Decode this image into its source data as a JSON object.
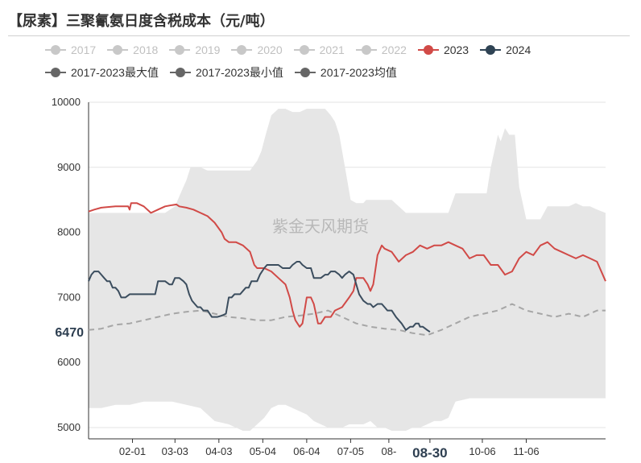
{
  "title": "【尿素】三聚氰氨日度含税成本（元/吨）",
  "watermark": "紫金天风期货",
  "legend": [
    {
      "label": "2017",
      "color": "#c8c8c8",
      "text_color": "#c0c0c0",
      "name": "legend-2017"
    },
    {
      "label": "2018",
      "color": "#c8c8c8",
      "text_color": "#c0c0c0",
      "name": "legend-2018"
    },
    {
      "label": "2019",
      "color": "#c8c8c8",
      "text_color": "#c0c0c0",
      "name": "legend-2019"
    },
    {
      "label": "2020",
      "color": "#c8c8c8",
      "text_color": "#c0c0c0",
      "name": "legend-2020"
    },
    {
      "label": "2021",
      "color": "#c8c8c8",
      "text_color": "#c0c0c0",
      "name": "legend-2021"
    },
    {
      "label": "2022",
      "color": "#c8c8c8",
      "text_color": "#c0c0c0",
      "name": "legend-2022"
    },
    {
      "label": "2023",
      "color": "#d14a47",
      "text_color": "#333333",
      "name": "legend-2023"
    },
    {
      "label": "2024",
      "color": "#2f4354",
      "text_color": "#333333",
      "name": "legend-2024"
    },
    {
      "label": "2017-2023最大值",
      "color": "#666666",
      "text_color": "#333333",
      "name": "legend-max"
    },
    {
      "label": "2017-2023最小值",
      "color": "#666666",
      "text_color": "#333333",
      "name": "legend-min"
    },
    {
      "label": "2017-2023均值",
      "color": "#666666",
      "text_color": "#333333",
      "name": "legend-mean"
    }
  ],
  "chart_data": {
    "type": "line",
    "title": "【尿素】三聚氰氨日度含税成本（元/吨）",
    "ylim": [
      5000,
      10000
    ],
    "yticks": [
      5000,
      6000,
      7000,
      8000,
      9000,
      10000
    ],
    "x_range_days": [
      1,
      366
    ],
    "xticks": [
      {
        "label": "02-01",
        "day": 32
      },
      {
        "label": "03-03",
        "day": 62
      },
      {
        "label": "04-03",
        "day": 93
      },
      {
        "label": "05-04",
        "day": 124
      },
      {
        "label": "06-04",
        "day": 155
      },
      {
        "label": "07-05",
        "day": 186
      },
      {
        "label": "08-",
        "day": 213
      },
      {
        "label": "08-30",
        "day": 242,
        "highlight": true
      },
      {
        "label": "10-06",
        "day": 279
      },
      {
        "label": "11-06",
        "day": 310
      }
    ],
    "last_value_label": "6470",
    "grid": true,
    "legend_position": "top",
    "colors": {
      "band": "#e6e6e6",
      "y2023": "#d14a47",
      "y2024": "#3b4d5e",
      "mean": "#a6a6a6"
    },
    "series": [
      {
        "name": "2017-2023最大值",
        "x": [
          1,
          20,
          40,
          55,
          62,
          68,
          70,
          73,
          76,
          80,
          85,
          90,
          95,
          105,
          115,
          120,
          123,
          126,
          130,
          135,
          140,
          145,
          150,
          155,
          160,
          164,
          168,
          172,
          175,
          178,
          182,
          186,
          190,
          193,
          195,
          197,
          200,
          205,
          210,
          215,
          220,
          225,
          230,
          235,
          240,
          245,
          250,
          255,
          260,
          265,
          270,
          275,
          280,
          282,
          285,
          288,
          290,
          292,
          295,
          298,
          300,
          302,
          305,
          310,
          315,
          320,
          325,
          330,
          335,
          340,
          345,
          350,
          355,
          360,
          366
        ],
        "values": [
          8300,
          8300,
          8300,
          8300,
          8400,
          8700,
          8800,
          9000,
          9000,
          9000,
          8950,
          8950,
          8950,
          8950,
          8950,
          9100,
          9250,
          9500,
          9800,
          9900,
          9900,
          9850,
          9850,
          9900,
          9900,
          9900,
          9900,
          9800,
          9700,
          9500,
          9000,
          8500,
          8450,
          8450,
          8450,
          8500,
          8500,
          8500,
          8500,
          8500,
          8400,
          8300,
          8300,
          8300,
          8300,
          8300,
          8300,
          8300,
          8600,
          8600,
          8600,
          8600,
          8600,
          8600,
          9000,
          9300,
          9500,
          9400,
          9600,
          9500,
          9500,
          9500,
          8700,
          8200,
          8200,
          8200,
          8400,
          8400,
          8400,
          8400,
          8450,
          8400,
          8400,
          8350,
          8300
        ]
      },
      {
        "name": "2017-2023最小值",
        "x": [
          1,
          10,
          20,
          30,
          40,
          50,
          60,
          70,
          80,
          90,
          100,
          105,
          110,
          115,
          120,
          125,
          130,
          135,
          140,
          145,
          150,
          155,
          160,
          165,
          170,
          175,
          180,
          185,
          190,
          195,
          200,
          205,
          210,
          215,
          220,
          225,
          230,
          235,
          240,
          245,
          250,
          255,
          260,
          270,
          280,
          290,
          300,
          310,
          320,
          330,
          340,
          350,
          360,
          366
        ],
        "values": [
          5300,
          5300,
          5350,
          5350,
          5400,
          5400,
          5400,
          5350,
          5300,
          5100,
          5050,
          5000,
          4950,
          4950,
          5050,
          5150,
          5300,
          5350,
          5350,
          5300,
          5250,
          5200,
          5100,
          5050,
          5000,
          5000,
          5000,
          5050,
          5050,
          5050,
          5100,
          5000,
          5000,
          4950,
          4950,
          4950,
          5000,
          5000,
          5050,
          5100,
          5100,
          5150,
          5400,
          5450,
          5450,
          5450,
          5450,
          5450,
          5450,
          5450,
          5450,
          5450,
          5450,
          5450
        ]
      },
      {
        "name": "2017-2023均值",
        "x": [
          1,
          10,
          20,
          30,
          40,
          50,
          60,
          70,
          80,
          90,
          100,
          110,
          120,
          130,
          140,
          150,
          160,
          170,
          180,
          190,
          200,
          210,
          220,
          230,
          240,
          250,
          260,
          270,
          280,
          290,
          300,
          310,
          320,
          330,
          340,
          350,
          360,
          366
        ],
        "values": [
          6500,
          6520,
          6580,
          6600,
          6650,
          6700,
          6750,
          6780,
          6800,
          6750,
          6700,
          6680,
          6650,
          6650,
          6700,
          6720,
          6750,
          6800,
          6700,
          6600,
          6550,
          6520,
          6500,
          6450,
          6420,
          6500,
          6600,
          6700,
          6750,
          6800,
          6900,
          6800,
          6750,
          6700,
          6750,
          6700,
          6800,
          6800
        ]
      },
      {
        "name": "2023",
        "x": [
          1,
          5,
          10,
          20,
          29,
          30,
          31,
          35,
          40,
          45,
          50,
          55,
          60,
          63,
          65,
          70,
          75,
          80,
          85,
          90,
          95,
          97,
          100,
          105,
          110,
          115,
          118,
          120,
          125,
          130,
          135,
          140,
          143,
          145,
          147,
          150,
          152,
          155,
          158,
          160,
          163,
          165,
          168,
          170,
          172,
          175,
          180,
          185,
          188,
          190,
          195,
          198,
          200,
          202,
          205,
          208,
          210,
          215,
          220,
          225,
          230,
          235,
          240,
          245,
          250,
          255,
          260,
          265,
          270,
          275,
          280,
          285,
          290,
          295,
          300,
          305,
          310,
          315,
          320,
          325,
          330,
          335,
          340,
          345,
          350,
          355,
          360,
          366
        ],
        "values": [
          8320,
          8350,
          8380,
          8400,
          8400,
          8350,
          8450,
          8450,
          8400,
          8300,
          8350,
          8400,
          8420,
          8430,
          8400,
          8380,
          8350,
          8300,
          8250,
          8150,
          8000,
          7900,
          7850,
          7850,
          7800,
          7700,
          7500,
          7450,
          7450,
          7400,
          7300,
          7200,
          7000,
          6800,
          6650,
          6550,
          6600,
          7000,
          7000,
          6900,
          6600,
          6600,
          6700,
          6700,
          6700,
          6800,
          6850,
          7000,
          7100,
          7300,
          7300,
          7200,
          7100,
          7200,
          7650,
          7800,
          7750,
          7700,
          7550,
          7650,
          7700,
          7800,
          7750,
          7800,
          7800,
          7850,
          7800,
          7750,
          7600,
          7650,
          7650,
          7500,
          7500,
          7350,
          7400,
          7600,
          7700,
          7650,
          7800,
          7850,
          7750,
          7700,
          7650,
          7600,
          7650,
          7600,
          7550,
          7250
        ]
      },
      {
        "name": "2024",
        "x": [
          1,
          3,
          5,
          8,
          10,
          12,
          14,
          16,
          18,
          20,
          22,
          24,
          27,
          30,
          33,
          36,
          40,
          45,
          48,
          50,
          52,
          55,
          58,
          60,
          62,
          65,
          68,
          70,
          72,
          74,
          76,
          78,
          80,
          82,
          85,
          88,
          90,
          92,
          95,
          98,
          100,
          102,
          104,
          106,
          108,
          110,
          112,
          114,
          116,
          118,
          120,
          122,
          125,
          127,
          130,
          133,
          135,
          138,
          140,
          143,
          145,
          148,
          150,
          152,
          155,
          158,
          160,
          162,
          165,
          168,
          170,
          172,
          175,
          178,
          180,
          182,
          185,
          188,
          190,
          192,
          195,
          198,
          200,
          202,
          205,
          208,
          210,
          212,
          215,
          218,
          220,
          222,
          225,
          228,
          230,
          232,
          234,
          235,
          237,
          240,
          242
        ],
        "values": [
          7250,
          7350,
          7400,
          7400,
          7350,
          7300,
          7250,
          7250,
          7150,
          7150,
          7100,
          7000,
          7000,
          7050,
          7050,
          7050,
          7050,
          7050,
          7050,
          7250,
          7250,
          7250,
          7200,
          7200,
          7300,
          7300,
          7250,
          7200,
          7050,
          6950,
          6900,
          6850,
          6850,
          6800,
          6800,
          6700,
          6700,
          6700,
          6720,
          6750,
          7000,
          7000,
          7050,
          7050,
          7050,
          7100,
          7150,
          7150,
          7250,
          7250,
          7250,
          7350,
          7450,
          7500,
          7500,
          7500,
          7500,
          7450,
          7450,
          7450,
          7500,
          7550,
          7550,
          7500,
          7450,
          7450,
          7300,
          7300,
          7300,
          7350,
          7350,
          7400,
          7400,
          7350,
          7300,
          7350,
          7400,
          7350,
          7200,
          7050,
          6950,
          6900,
          6900,
          6850,
          6900,
          6900,
          6850,
          6800,
          6800,
          6700,
          6650,
          6600,
          6500,
          6550,
          6550,
          6600,
          6600,
          6550,
          6550,
          6500,
          6470
        ]
      }
    ]
  }
}
